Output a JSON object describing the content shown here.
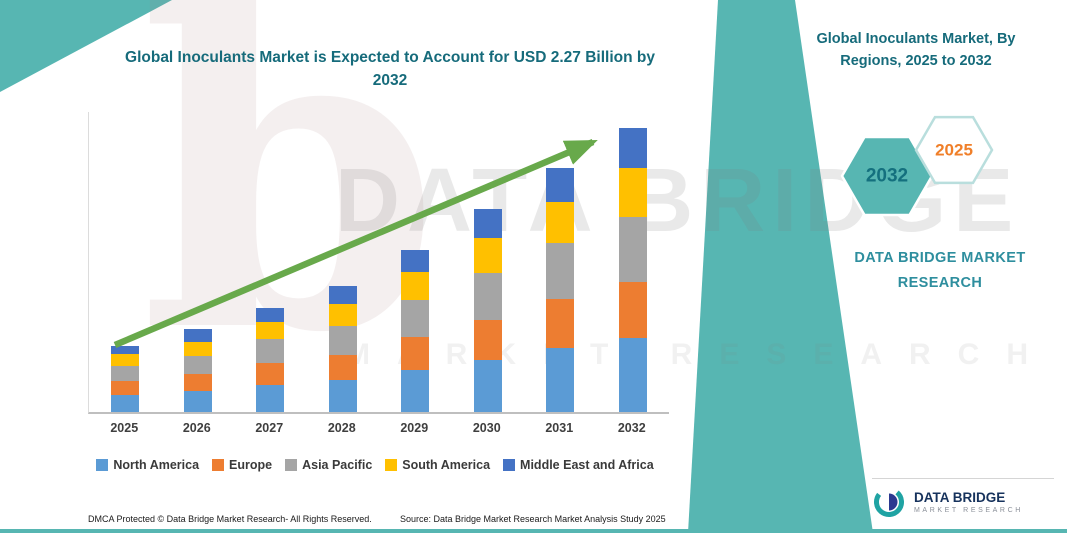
{
  "titles": {
    "main": "Global Inoculants Market is Expected to Account for USD 2.27 Billion by 2032",
    "right_panel": "Global Inoculants Market, By Regions, 2025 to 2032"
  },
  "side_panel": {
    "hexagon_back_year": "2032",
    "hexagon_front_year": "2025",
    "brand": "DATA BRIDGE MARKET RESEARCH"
  },
  "watermark": {
    "line1": "DATA BRIDGE",
    "line2": "MARKET RESEARCH",
    "glyph": "b"
  },
  "chart_data": {
    "type": "bar",
    "stacked": true,
    "title": "Global Inoculants Market is Expected to Account for USD 2.27 Billion by 2032",
    "unit": "USD Billion",
    "categories": [
      "2025",
      "2026",
      "2027",
      "2028",
      "2029",
      "2030",
      "2031",
      "2032"
    ],
    "series": [
      {
        "name": "North America",
        "color": "#5B9BD5",
        "values": [
          0.14,
          0.17,
          0.22,
          0.26,
          0.34,
          0.42,
          0.51,
          0.59
        ]
      },
      {
        "name": "Europe",
        "color": "#ED7D31",
        "values": [
          0.11,
          0.13,
          0.17,
          0.2,
          0.26,
          0.32,
          0.39,
          0.45
        ]
      },
      {
        "name": "Asia Pacific",
        "color": "#A5A5A5",
        "values": [
          0.12,
          0.15,
          0.19,
          0.23,
          0.3,
          0.37,
          0.45,
          0.52
        ]
      },
      {
        "name": "South America",
        "color": "#FFC000",
        "values": [
          0.09,
          0.11,
          0.14,
          0.17,
          0.22,
          0.28,
          0.33,
          0.39
        ]
      },
      {
        "name": "Middle East and Africa",
        "color": "#4472C4",
        "values": [
          0.07,
          0.1,
          0.11,
          0.15,
          0.18,
          0.23,
          0.27,
          0.32
        ]
      }
    ],
    "totals": [
      0.53,
      0.66,
      0.83,
      1.01,
      1.3,
      1.62,
      1.95,
      2.27
    ],
    "ylim": [
      0,
      2.4
    ],
    "grid": false,
    "legend_position": "bottom",
    "trend_arrow": "upward"
  },
  "footer": {
    "dmca": "DMCA Protected © Data Bridge Market Research-  All Rights Reserved.",
    "source": "Source: Data Bridge Market Research  Market Analysis Study 2025"
  },
  "logo": {
    "title": "DATA BRIDGE",
    "subtitle": "MARKET RESEARCH"
  },
  "colors": {
    "teal_band": "#57B6B2",
    "title_teal": "#166B7B",
    "brand_teal": "#2E8E9E",
    "arrow_green": "#68A94B",
    "hex_2025_text": "#F07F29",
    "axis_gray": "#BFBFBF"
  }
}
